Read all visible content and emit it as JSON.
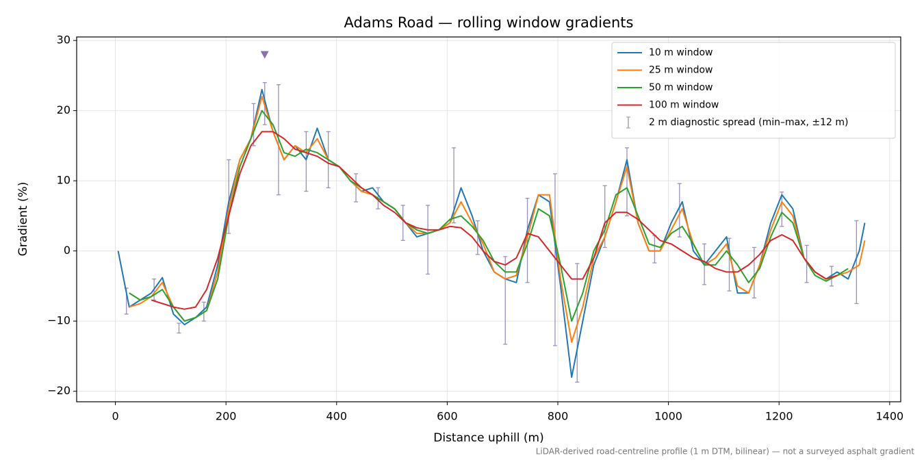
{
  "chart_data": {
    "type": "line",
    "title": "Adams Road — rolling window gradients",
    "xlabel": "Distance uphill (m)",
    "ylabel": "Gradient (%)",
    "footnote": "LiDAR-derived road-centreline profile (1 m DTM, bilinear) — not a surveyed asphalt gradient",
    "xlim": [
      -70,
      1420
    ],
    "ylim": [
      -21.5,
      30.5
    ],
    "xticks": [
      0,
      200,
      400,
      600,
      800,
      1000,
      1200,
      1400
    ],
    "yticks": [
      {
        "value": -20,
        "label": "−20"
      },
      {
        "value": -10,
        "label": "−10"
      },
      0,
      10,
      20,
      30
    ],
    "grid": true,
    "legend": "upper right",
    "x": [
      5,
      25,
      45,
      65,
      85,
      105,
      125,
      145,
      165,
      185,
      205,
      225,
      245,
      265,
      285,
      305,
      325,
      345,
      365,
      385,
      405,
      425,
      445,
      465,
      485,
      505,
      525,
      545,
      565,
      585,
      605,
      625,
      645,
      665,
      685,
      705,
      725,
      745,
      765,
      785,
      805,
      825,
      845,
      865,
      885,
      905,
      925,
      945,
      965,
      985,
      1005,
      1025,
      1045,
      1065,
      1085,
      1105,
      1125,
      1145,
      1165,
      1185,
      1205,
      1225,
      1245,
      1265,
      1285,
      1305,
      1325,
      1345,
      1355
    ],
    "series": [
      {
        "name": "10 m window",
        "color": "#1f77b4",
        "values": [
          0,
          -8,
          -7,
          -6,
          -3.8,
          -9,
          -10.5,
          -9.5,
          -8,
          -2,
          7,
          13,
          16,
          23,
          17,
          13,
          15,
          13,
          17.5,
          13,
          12,
          10,
          8.5,
          9,
          7,
          6,
          4,
          2,
          2.5,
          3,
          4,
          9,
          5,
          0,
          -3,
          -4,
          -4.5,
          3,
          8,
          7,
          -5,
          -18,
          -10,
          -2,
          2,
          7,
          13,
          4,
          0,
          0,
          4,
          7,
          0,
          -2,
          0,
          2,
          -6,
          -6,
          -2,
          4,
          8,
          6,
          -1,
          -3,
          -4,
          -3,
          -4,
          0,
          4
        ]
      },
      {
        "name": "25 m window",
        "color": "#ff7f0e",
        "values": [
          null,
          -8,
          -7.5,
          -6.5,
          -4.5,
          -8,
          -10,
          -9.5,
          -8.5,
          -3,
          6,
          13,
          16,
          22,
          17,
          13,
          15,
          14,
          16,
          13,
          12,
          10,
          8.5,
          8,
          7,
          6,
          4,
          2.5,
          2.5,
          3,
          4,
          7,
          4,
          1,
          -3,
          -4,
          -3.5,
          2,
          8,
          8,
          -4,
          -13,
          -8,
          -1,
          2,
          7,
          12,
          4,
          0,
          0,
          3,
          6,
          1,
          -2,
          -1,
          1,
          -5,
          -6,
          -2,
          3,
          7,
          5,
          -1,
          -3,
          -4,
          -3.5,
          -3,
          -2,
          1.5
        ]
      },
      {
        "name": "50 m window",
        "color": "#2ca02c",
        "values": [
          null,
          -6,
          -7,
          -6.5,
          -5.5,
          -8,
          -10,
          -9.5,
          -8.5,
          -4,
          5,
          12,
          16,
          20,
          18,
          14,
          13.5,
          14.5,
          14,
          13,
          12,
          10,
          9,
          8,
          7,
          6,
          4,
          3,
          2.5,
          3,
          4.5,
          5,
          3.5,
          1.5,
          -1.5,
          -3,
          -3,
          1,
          6,
          5,
          -2,
          -10,
          -6,
          0,
          3,
          8,
          9,
          5,
          1,
          0.5,
          2.5,
          3.5,
          1,
          -2,
          -2,
          0,
          -2,
          -4.5,
          -2.5,
          2,
          5.5,
          4,
          -1,
          -3.5,
          -4.3,
          -3.5,
          -2.5,
          null,
          null
        ]
      },
      {
        "name": "100 m window",
        "color": "#d62728",
        "values": [
          null,
          null,
          null,
          -7,
          -7.5,
          -8,
          -8.3,
          -8,
          -5.5,
          -1,
          5,
          11,
          15,
          17,
          17,
          16,
          14.5,
          14,
          13.5,
          12.5,
          12,
          10.5,
          9,
          8,
          6.5,
          5.5,
          4,
          3.3,
          3,
          3,
          3.5,
          3.3,
          2,
          0,
          -1.5,
          -2,
          -1,
          2.5,
          2,
          0,
          -2,
          -4,
          -4,
          -1,
          4,
          5.5,
          5.5,
          4.5,
          3,
          1.5,
          1,
          0,
          -1,
          -1.5,
          -2.5,
          -3,
          -3,
          -2,
          -0.5,
          1.5,
          2.3,
          1.5,
          -1,
          -3,
          -4,
          -3.5,
          null,
          null,
          null
        ]
      }
    ],
    "error_bars": {
      "name": "2 m diagnostic spread (min–max, ±12 m)",
      "color": "#9a8fbf",
      "x": [
        20,
        70,
        115,
        160,
        205,
        250,
        270,
        295,
        345,
        385,
        435,
        475,
        520,
        565,
        612,
        655,
        705,
        745,
        795,
        835,
        885,
        925,
        975,
        1020,
        1065,
        1110,
        1155,
        1205,
        1250,
        1295,
        1340
      ],
      "low": [
        -9,
        -7,
        -11.7,
        -10,
        2.5,
        15,
        18,
        8,
        8.5,
        9,
        7,
        6,
        1.5,
        -3.3,
        4,
        -0.5,
        -13.3,
        -4.5,
        -13.5,
        -18.7,
        0.5,
        5,
        -1.7,
        2,
        -4.8,
        -5.7,
        -6.7,
        3.5,
        -4.5,
        -5,
        -7.5
      ],
      "high": [
        -5.3,
        -4,
        -10.3,
        -7.3,
        13,
        21,
        24,
        23.7,
        17,
        17,
        11,
        9,
        6.5,
        6.5,
        14.7,
        4.3,
        -0.8,
        7.5,
        11,
        -1.8,
        9.3,
        14.7,
        2.2,
        9.6,
        1,
        1.8,
        0.5,
        8.4,
        0.8,
        -2.2,
        4.3
      ]
    },
    "peak_marker": {
      "x": 270,
      "y": 28,
      "color": "#8c6fae"
    }
  }
}
